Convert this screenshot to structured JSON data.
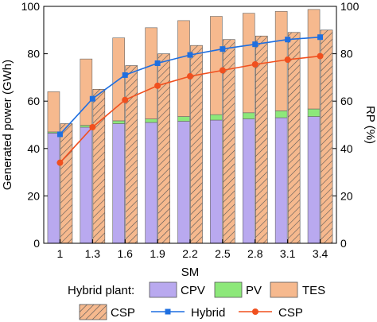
{
  "chart_data": {
    "type": "bar",
    "xlabel": "SM",
    "ylabel_left": "Generated power (GWh)",
    "ylabel_right": "RP (%)",
    "ylim_left": [
      0,
      100
    ],
    "ylim_right": [
      0,
      100
    ],
    "left_ticks": [
      "0",
      "20",
      "40",
      "60",
      "80",
      "100"
    ],
    "right_ticks": [
      "0",
      "20",
      "40",
      "60",
      "80",
      "100"
    ],
    "categories": [
      "1",
      "1.3",
      "1.6",
      "1.9",
      "2.2",
      "2.5",
      "2.8",
      "3.1",
      "3.4"
    ],
    "hybrid_stack": {
      "CPV": [
        46.5,
        49,
        50.5,
        51,
        51.5,
        52,
        52.5,
        53,
        53.5
      ],
      "PV": [
        0.5,
        0.8,
        1.2,
        1.5,
        2,
        2.3,
        2.6,
        2.9,
        3.2
      ],
      "TES": [
        17,
        28,
        35,
        38.5,
        40.5,
        41.5,
        42,
        42,
        42
      ]
    },
    "csp_bars": [
      50.5,
      65,
      75,
      80,
      83.5,
      86,
      87.5,
      89,
      90
    ],
    "rp_hybrid": [
      46,
      61,
      71,
      76,
      79.5,
      82,
      84,
      86,
      87
    ],
    "rp_csp": [
      34,
      49,
      60.5,
      66.5,
      70.5,
      73,
      75.5,
      77.5,
      79
    ],
    "legend": {
      "heading": "Hybrid plant:",
      "cpv": "CPV",
      "pv": "PV",
      "tes": "TES",
      "csp_bar": "CSP",
      "hybrid_line": "Hybrid",
      "csp_line": "CSP"
    },
    "colors": {
      "cpv": "#b9a9ef",
      "pv": "#8de87a",
      "tes": "#f6b98e",
      "csp_hatch": "#f6b98e",
      "hybrid_line": "#1f6fe0",
      "csp_line": "#f0501f"
    },
    "grid": false,
    "legend_position": "bottom"
  }
}
